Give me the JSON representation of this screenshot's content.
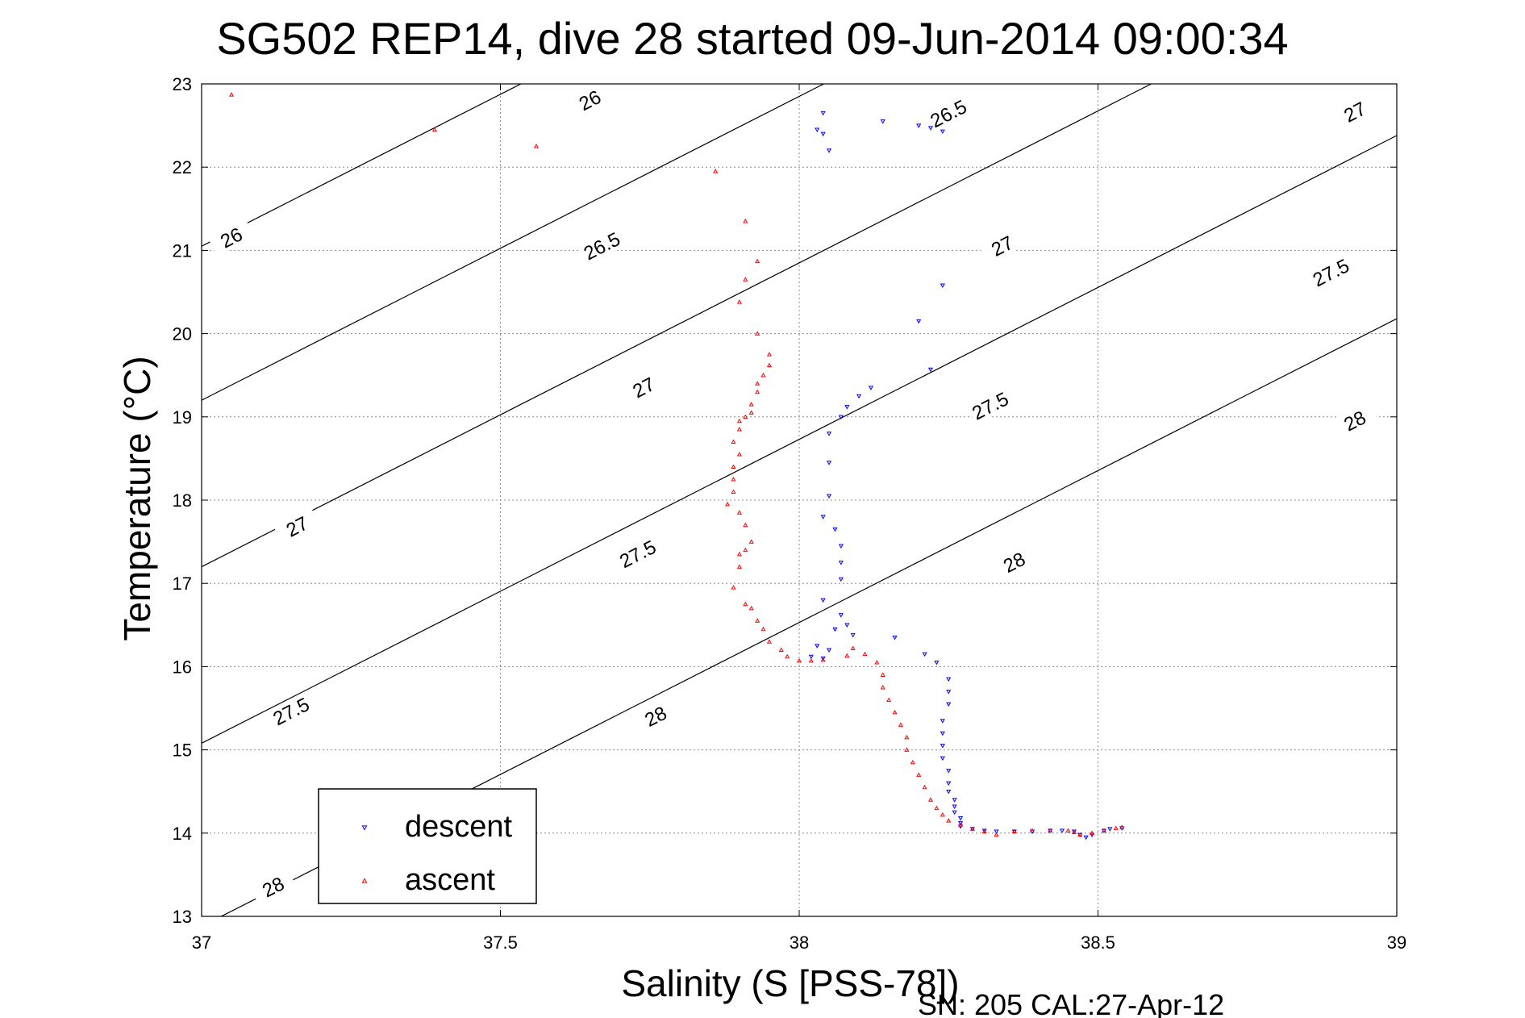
{
  "chart_data": {
    "type": "scatter",
    "title": "SG502 REP14, dive 28 started 09-Jun-2014 09:00:34",
    "xlabel": "Salinity (S [PSS-78])",
    "ylabel": "Temperature (°C)",
    "xlim": [
      37,
      39
    ],
    "ylim": [
      13,
      23
    ],
    "xticks": [
      "37",
      "37.5",
      "38",
      "38.5",
      "39"
    ],
    "yticks": [
      "13",
      "14",
      "15",
      "16",
      "17",
      "18",
      "19",
      "20",
      "21",
      "22",
      "23"
    ],
    "grid": true,
    "legend_position": "bottom-left",
    "footer": "SN: 205  CAL:27-Apr-12",
    "colors": {
      "descent": "#0000ff",
      "ascent": "#ff0000",
      "contour": "#000000",
      "grid": "#8c8c8c"
    },
    "density_contours": [
      {
        "label": "26",
        "start": [
          37.0,
          22.84
        ],
        "end": [
          37.0,
          22.84
        ],
        "line": [
          [
            37.0,
            22.84
          ],
          [
            37.06,
            23.0
          ]
        ],
        "labels_at": [
          [
            37.65,
            22.8
          ],
          [
            37.05,
            21.15
          ]
        ]
      },
      {
        "label": "26.5"
      },
      {
        "label": "27"
      },
      {
        "label": "27.5"
      },
      {
        "label": "28"
      }
    ],
    "contour_lines": [
      {
        "label": "26",
        "points": [
          [
            37.06,
            23.0
          ],
          [
            39.0,
            23.0
          ]
        ],
        "labels_at": []
      }
    ],
    "isopycnals": [
      {
        "label": "26",
        "t_at_s37": 21.05,
        "slope": 3.65,
        "labels_at": [
          [
            37.05,
            21.15
          ],
          [
            37.65,
            22.8
          ]
        ]
      },
      {
        "label": "26.5",
        "t_at_s37": 19.2,
        "slope": 3.65,
        "labels_at": [
          [
            37.67,
            21.05
          ],
          [
            38.25,
            22.64
          ]
        ]
      },
      {
        "label": "27",
        "t_at_s37": 17.2,
        "slope": 3.65,
        "labels_at": [
          [
            37.16,
            17.68
          ],
          [
            37.74,
            19.35
          ],
          [
            38.34,
            21.05
          ],
          [
            38.93,
            22.66
          ]
        ]
      },
      {
        "label": "27.5",
        "t_at_s37": 15.08,
        "slope": 3.65,
        "labels_at": [
          [
            37.15,
            15.46
          ],
          [
            37.73,
            17.35
          ],
          [
            38.32,
            19.13
          ],
          [
            38.89,
            20.73
          ]
        ]
      },
      {
        "label": "28",
        "t_at_s37": 12.88,
        "slope": 3.65,
        "labels_at": [
          [
            37.12,
            13.35
          ],
          [
            37.76,
            15.4
          ],
          [
            38.36,
            17.25
          ],
          [
            38.93,
            18.95
          ]
        ]
      }
    ],
    "series": [
      {
        "name": "descent",
        "color": "#0000ff",
        "marker": "triangle-down",
        "points": [
          [
            38.04,
            22.65
          ],
          [
            38.03,
            22.45
          ],
          [
            38.04,
            22.4
          ],
          [
            38.05,
            22.2
          ],
          [
            38.14,
            22.55
          ],
          [
            38.2,
            22.5
          ],
          [
            38.22,
            22.47
          ],
          [
            38.24,
            22.43
          ],
          [
            38.24,
            20.58
          ],
          [
            38.2,
            20.15
          ],
          [
            38.22,
            19.57
          ],
          [
            38.12,
            19.35
          ],
          [
            38.1,
            19.25
          ],
          [
            38.08,
            19.12
          ],
          [
            38.07,
            19.0
          ],
          [
            38.05,
            18.8
          ],
          [
            38.05,
            18.45
          ],
          [
            38.05,
            18.05
          ],
          [
            38.04,
            17.8
          ],
          [
            38.06,
            17.65
          ],
          [
            38.07,
            17.45
          ],
          [
            38.07,
            17.25
          ],
          [
            38.07,
            17.05
          ],
          [
            38.04,
            16.8
          ],
          [
            38.07,
            16.62
          ],
          [
            38.08,
            16.5
          ],
          [
            38.06,
            16.45
          ],
          [
            38.09,
            16.38
          ],
          [
            38.03,
            16.25
          ],
          [
            38.05,
            16.2
          ],
          [
            38.02,
            16.12
          ],
          [
            38.04,
            16.1
          ],
          [
            38.16,
            16.35
          ],
          [
            38.21,
            16.15
          ],
          [
            38.23,
            16.05
          ],
          [
            38.25,
            15.85
          ],
          [
            38.25,
            15.7
          ],
          [
            38.25,
            15.55
          ],
          [
            38.24,
            15.35
          ],
          [
            38.24,
            15.2
          ],
          [
            38.24,
            15.05
          ],
          [
            38.24,
            14.9
          ],
          [
            38.25,
            14.75
          ],
          [
            38.25,
            14.6
          ],
          [
            38.25,
            14.5
          ],
          [
            38.26,
            14.4
          ],
          [
            38.26,
            14.32
          ],
          [
            38.26,
            14.25
          ],
          [
            38.27,
            14.18
          ],
          [
            38.27,
            14.12
          ],
          [
            38.27,
            14.08
          ],
          [
            38.29,
            14.05
          ],
          [
            38.31,
            14.03
          ],
          [
            38.33,
            14.02
          ],
          [
            38.36,
            14.02
          ],
          [
            38.39,
            14.02
          ],
          [
            38.42,
            14.03
          ],
          [
            38.44,
            14.03
          ],
          [
            38.46,
            14.02
          ],
          [
            38.47,
            13.98
          ],
          [
            38.48,
            13.95
          ],
          [
            38.49,
            13.98
          ],
          [
            38.51,
            14.03
          ],
          [
            38.52,
            14.05
          ],
          [
            38.54,
            14.06
          ]
        ]
      },
      {
        "name": "ascent",
        "color": "#ff0000",
        "marker": "triangle-up",
        "points": [
          [
            37.05,
            22.87
          ],
          [
            37.39,
            22.45
          ],
          [
            37.56,
            22.25
          ],
          [
            37.86,
            21.95
          ],
          [
            37.91,
            21.35
          ],
          [
            37.93,
            20.87
          ],
          [
            37.91,
            20.65
          ],
          [
            37.9,
            20.38
          ],
          [
            37.93,
            20.0
          ],
          [
            37.95,
            19.75
          ],
          [
            37.95,
            19.62
          ],
          [
            37.94,
            19.5
          ],
          [
            37.93,
            19.4
          ],
          [
            37.93,
            19.3
          ],
          [
            37.92,
            19.15
          ],
          [
            37.92,
            19.05
          ],
          [
            37.91,
            19.0
          ],
          [
            37.9,
            18.95
          ],
          [
            37.9,
            18.85
          ],
          [
            37.89,
            18.7
          ],
          [
            37.9,
            18.55
          ],
          [
            37.89,
            18.4
          ],
          [
            37.89,
            18.25
          ],
          [
            37.89,
            18.1
          ],
          [
            37.88,
            17.95
          ],
          [
            37.9,
            17.85
          ],
          [
            37.91,
            17.7
          ],
          [
            37.92,
            17.5
          ],
          [
            37.91,
            17.4
          ],
          [
            37.9,
            17.35
          ],
          [
            37.9,
            17.2
          ],
          [
            37.89,
            16.95
          ],
          [
            37.91,
            16.75
          ],
          [
            37.92,
            16.7
          ],
          [
            37.93,
            16.55
          ],
          [
            37.94,
            16.45
          ],
          [
            37.95,
            16.3
          ],
          [
            37.97,
            16.2
          ],
          [
            37.98,
            16.12
          ],
          [
            38.0,
            16.07
          ],
          [
            38.02,
            16.07
          ],
          [
            38.04,
            16.08
          ],
          [
            38.08,
            16.13
          ],
          [
            38.09,
            16.22
          ],
          [
            38.11,
            16.15
          ],
          [
            38.13,
            16.05
          ],
          [
            38.14,
            15.9
          ],
          [
            38.14,
            15.75
          ],
          [
            38.15,
            15.6
          ],
          [
            38.16,
            15.45
          ],
          [
            38.17,
            15.3
          ],
          [
            38.18,
            15.15
          ],
          [
            38.18,
            15.0
          ],
          [
            38.19,
            14.85
          ],
          [
            38.2,
            14.7
          ],
          [
            38.21,
            14.55
          ],
          [
            38.22,
            14.4
          ],
          [
            38.23,
            14.3
          ],
          [
            38.24,
            14.22
          ],
          [
            38.25,
            14.15
          ],
          [
            38.27,
            14.1
          ],
          [
            38.29,
            14.05
          ],
          [
            38.31,
            14.02
          ],
          [
            38.33,
            13.98
          ],
          [
            38.36,
            14.02
          ],
          [
            38.39,
            14.03
          ],
          [
            38.42,
            14.03
          ],
          [
            38.45,
            14.03
          ],
          [
            38.46,
            14.01
          ],
          [
            38.47,
            13.98
          ],
          [
            38.49,
            14.0
          ],
          [
            38.51,
            14.03
          ],
          [
            38.53,
            14.06
          ],
          [
            38.54,
            14.07
          ]
        ]
      }
    ]
  }
}
